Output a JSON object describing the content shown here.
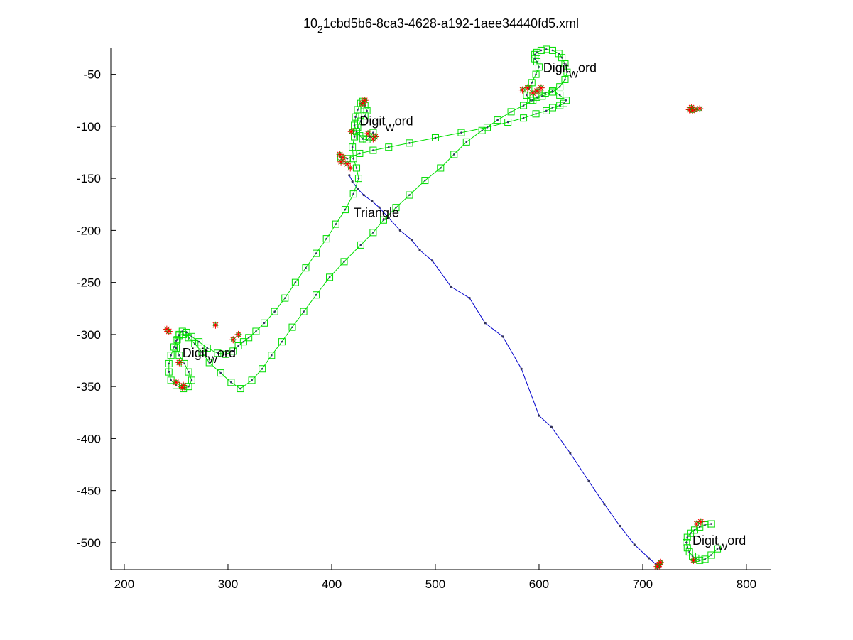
{
  "chart_data": {
    "type": "scatter",
    "title": "10_21cbd5b6-8ca3-4628-a192-1aee34440fd5.xml",
    "title_parts": {
      "pre": "10",
      "sub": "2",
      "post": "1cbd5b6-8ca3-4628-a192-1aee34440fd5.xml"
    },
    "xlabel": "",
    "ylabel": "",
    "xlim": [
      187,
      824
    ],
    "ylim": [
      -526,
      -25
    ],
    "grid": false,
    "legend": "none",
    "xticks": [
      200,
      300,
      400,
      500,
      600,
      700,
      800
    ],
    "yticks": [
      -50,
      -100,
      -150,
      -200,
      -250,
      -300,
      -350,
      -400,
      -450,
      -500
    ],
    "colors": {
      "green": "#00dd00",
      "blue": "#0000cc",
      "red": "#ff0000",
      "axis": "#000000"
    },
    "annotations": [
      {
        "pre": "Digit",
        "sub": "W",
        "post": "ord",
        "x": 604,
        "y": -48
      },
      {
        "pre": "Digit",
        "sub": "W",
        "post": "ord",
        "x": 427,
        "y": -99
      },
      {
        "pre": "Digit",
        "sub": "W",
        "post": "ord",
        "x": 256,
        "y": -322
      },
      {
        "pre": "Digit",
        "sub": "W",
        "post": "ord",
        "x": 748,
        "y": -502
      },
      {
        "pre": "Triangle",
        "sub": "",
        "post": "",
        "x": 421,
        "y": -187
      }
    ],
    "series": [
      {
        "color": "#0000cc",
        "marker": "dot",
        "x": [
          417,
          420,
          425,
          431,
          439,
          446,
          455,
          466,
          477,
          485,
          497,
          515,
          533,
          548,
          565,
          583,
          600,
          612,
          630,
          648,
          663,
          678,
          692,
          706,
          713,
          716
        ],
        "y": [
          -147,
          -153,
          -160,
          -166,
          -172,
          -178,
          -188,
          -200,
          -209,
          -219,
          -229,
          -254,
          -265,
          -289,
          -302,
          -333,
          -378,
          -389,
          -414,
          -441,
          -463,
          -484,
          -502,
          -515,
          -521,
          -523
        ]
      },
      {
        "color": "#00dd00",
        "marker": "square",
        "x": [
          409,
          415,
          427,
          440,
          455,
          475,
          500,
          525,
          550,
          570,
          585,
          597,
          607,
          613,
          620,
          624,
          626,
          620,
          613,
          606,
          598,
          592,
          588,
          590,
          593,
          597,
          600,
          598,
          596,
          596,
          598,
          602,
          607,
          613,
          619,
          622,
          625,
          627,
          625,
          620,
          613,
          603,
          594,
          585,
          573,
          560,
          545,
          530,
          518,
          505,
          490,
          475,
          462,
          450,
          440,
          428,
          412,
          398,
          385,
          373,
          362,
          352,
          342,
          333,
          323,
          312,
          303,
          293,
          282,
          275,
          268,
          262,
          257,
          253,
          250,
          250,
          253,
          258,
          262,
          265,
          262,
          257,
          250,
          245,
          243,
          243,
          245,
          248,
          251,
          253,
          256,
          260,
          265,
          272,
          280,
          290,
          298,
          305,
          310,
          315,
          320,
          327,
          335,
          345,
          355,
          365,
          375,
          385,
          395,
          404,
          413,
          421,
          426,
          424,
          421,
          420,
          422,
          425,
          428,
          432,
          434,
          432,
          430,
          428,
          425,
          423,
          422,
          424,
          427,
          430,
          434,
          437,
          440
        ],
        "y": [
          -130,
          -131,
          -126,
          -123,
          -120,
          -116,
          -111,
          -106,
          -101,
          -96,
          -92,
          -88,
          -85,
          -82,
          -80,
          -78,
          -75,
          -70,
          -66,
          -68,
          -72,
          -75,
          -70,
          -64,
          -58,
          -50,
          -43,
          -38,
          -35,
          -31,
          -29,
          -27,
          -26,
          -27,
          -30,
          -34,
          -40,
          -48,
          -55,
          -62,
          -67,
          -71,
          -75,
          -80,
          -86,
          -94,
          -104,
          -115,
          -127,
          -140,
          -152,
          -166,
          -178,
          -190,
          -202,
          -214,
          -230,
          -245,
          -262,
          -278,
          -293,
          -307,
          -320,
          -333,
          -344,
          -352,
          -346,
          -337,
          -327,
          -317,
          -309,
          -303,
          -300,
          -301,
          -306,
          -313,
          -320,
          -328,
          -336,
          -344,
          -350,
          -352,
          -349,
          -344,
          -336,
          -328,
          -320,
          -312,
          -305,
          -300,
          -297,
          -298,
          -302,
          -307,
          -313,
          -318,
          -319,
          -316,
          -311,
          -307,
          -303,
          -297,
          -289,
          -278,
          -265,
          -250,
          -236,
          -222,
          -208,
          -194,
          -180,
          -165,
          -150,
          -140,
          -131,
          -120,
          -110,
          -101,
          -95,
          -90,
          -85,
          -80,
          -76,
          -78,
          -84,
          -91,
          -99,
          -105,
          -109,
          -112,
          -113,
          -110,
          -106
        ]
      },
      {
        "color": "#00dd00",
        "marker": "square",
        "x": [
          766,
          760,
          755,
          750,
          746,
          743,
          742,
          743,
          745,
          748,
          751,
          755,
          760,
          766,
          772
        ],
        "y": [
          -482,
          -483,
          -485,
          -488,
          -491,
          -495,
          -500,
          -505,
          -509,
          -513,
          -515,
          -517,
          -516,
          -512,
          -506
        ]
      },
      {
        "color": "#ff0000",
        "marker": "star",
        "x": [
          750,
          747,
          745,
          748,
          755,
          716,
          714,
          717,
          756,
          752,
          749,
          411,
          408,
          415,
          418,
          409,
          419,
          432,
          430,
          435,
          442,
          440,
          584,
          589,
          594,
          598,
          602,
          241,
          243,
          253,
          257,
          256,
          250,
          288,
          305,
          310
        ],
        "y": [
          -84,
          -82,
          -84,
          -85,
          -83,
          -521,
          -523,
          -519,
          -480,
          -482,
          -517,
          -130,
          -127,
          -136,
          -140,
          -134,
          -105,
          -75,
          -78,
          -107,
          -110,
          -112,
          -65,
          -63,
          -68,
          -66,
          -63,
          -295,
          -297,
          -327,
          -349,
          -351,
          -346,
          -291,
          -305,
          -300
        ]
      }
    ]
  }
}
